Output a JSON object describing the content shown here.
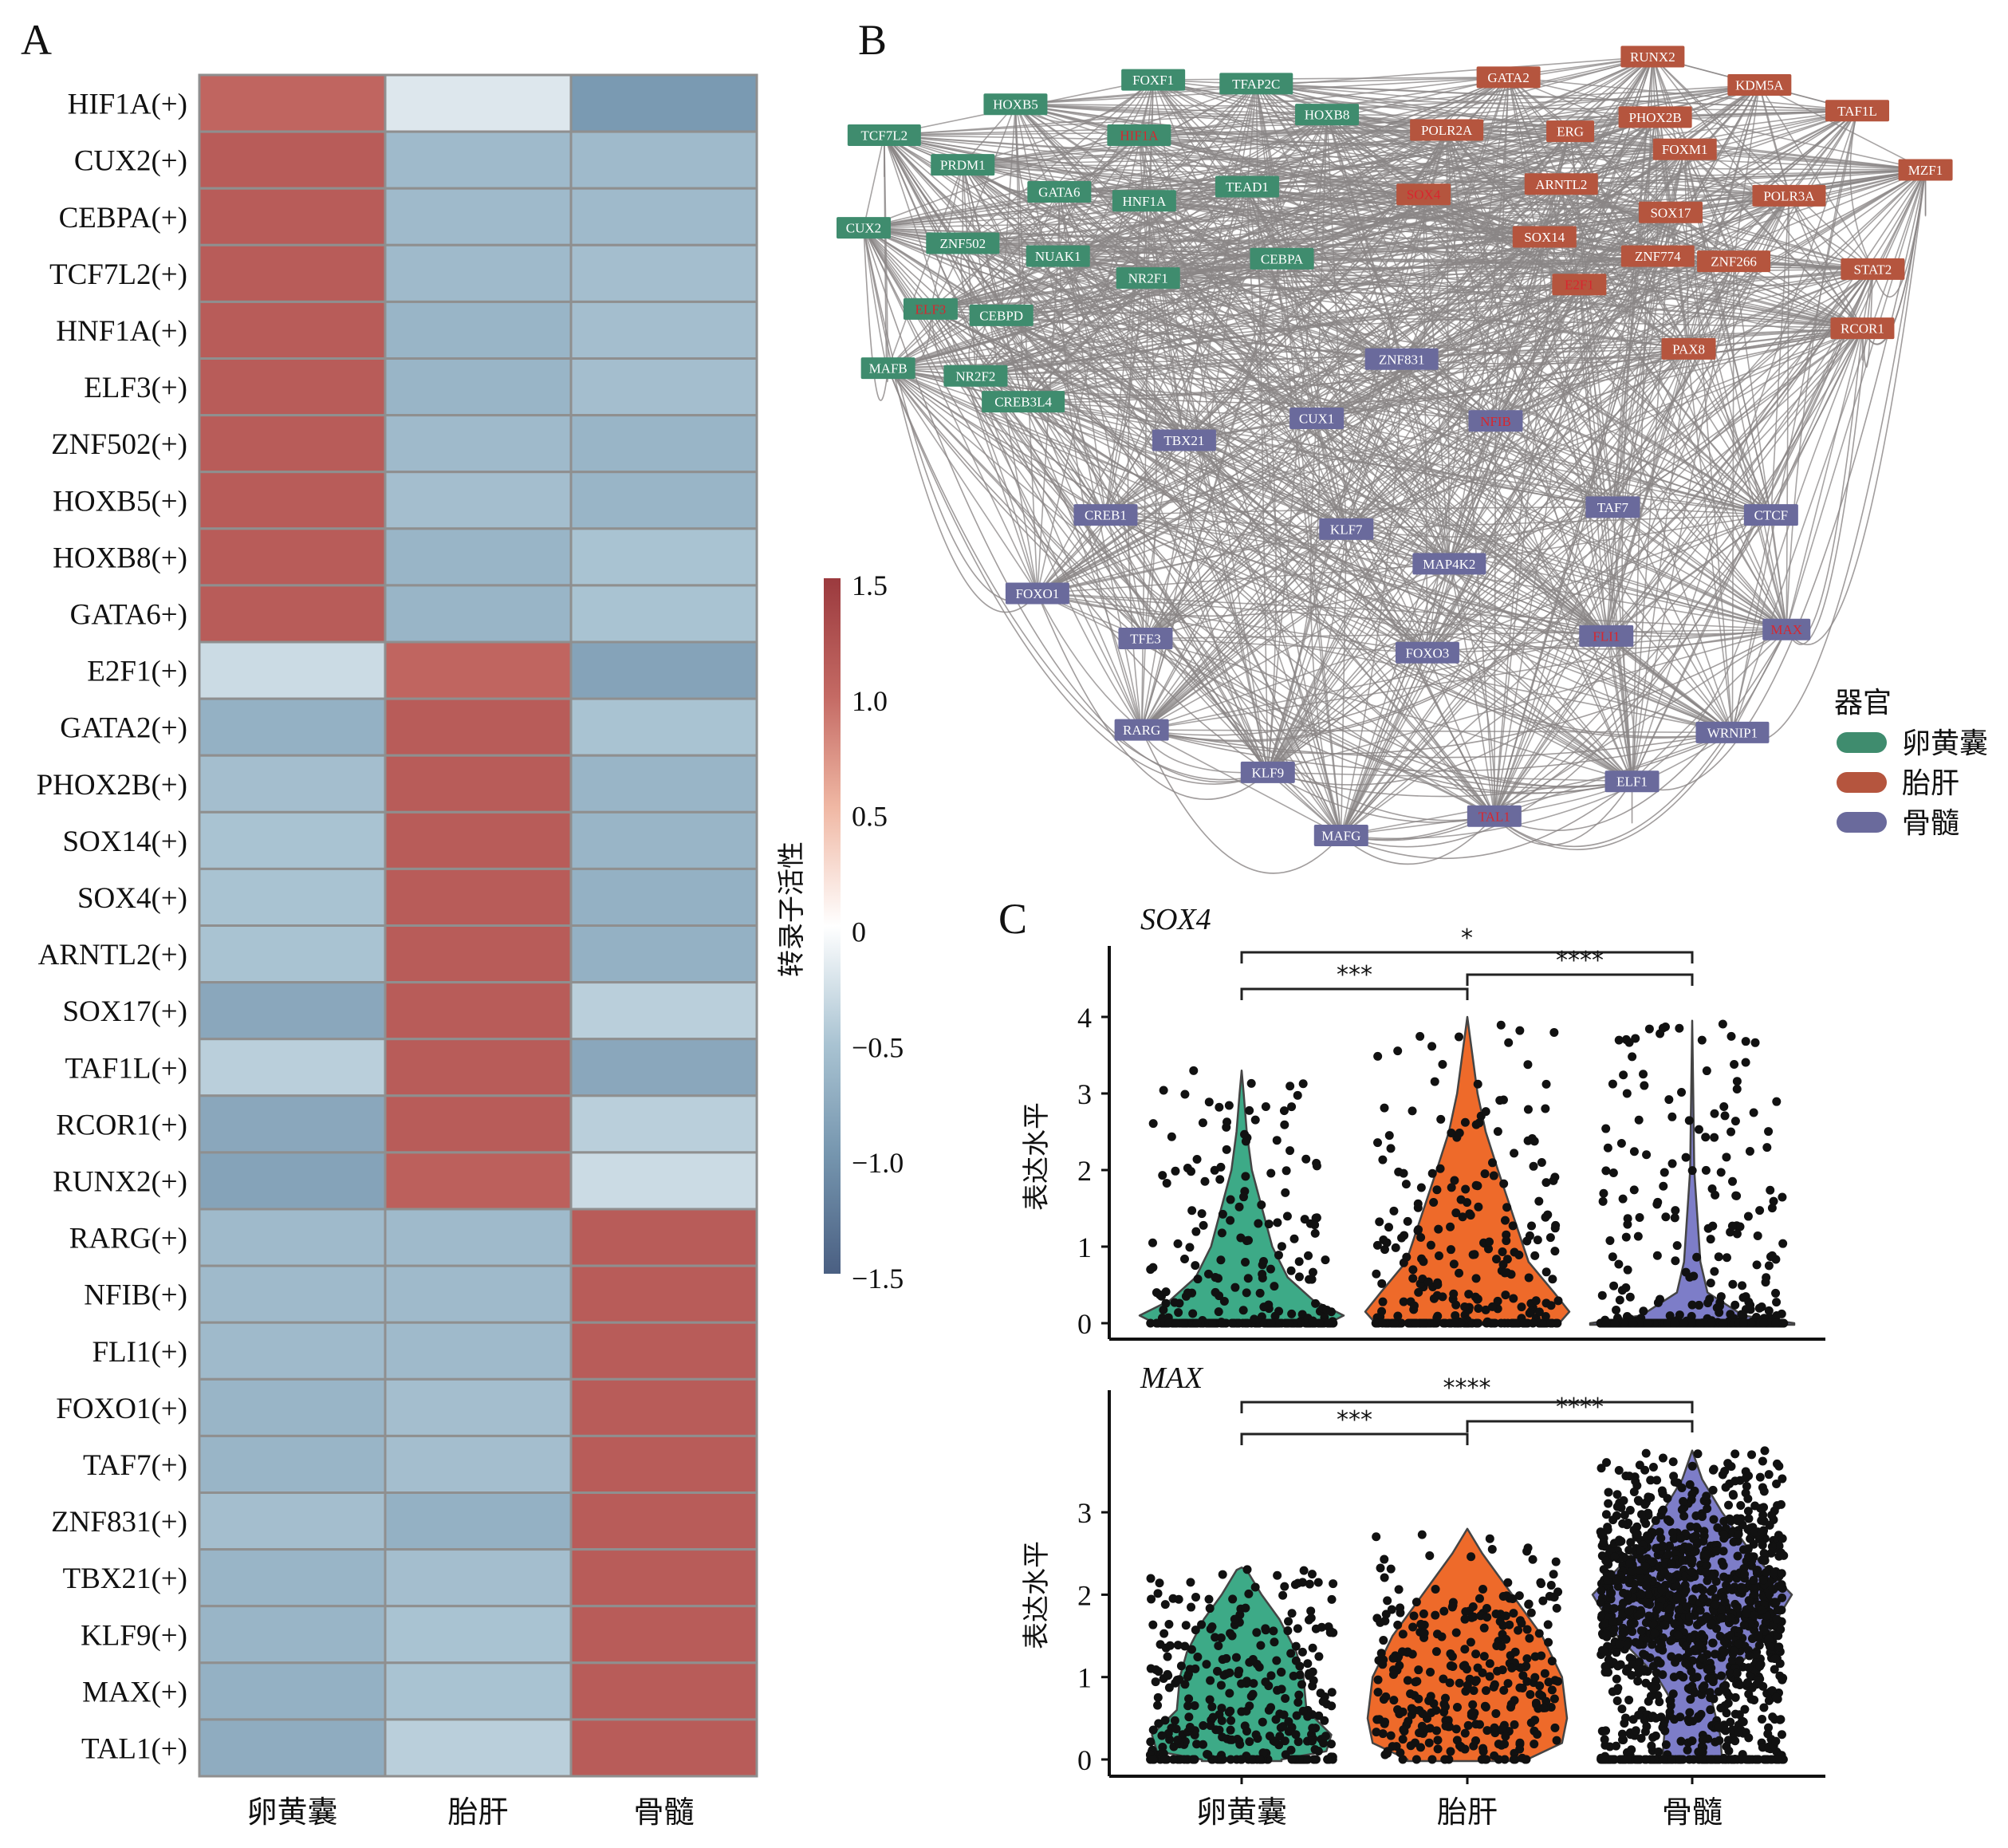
{
  "panels": {
    "a": "A",
    "b": "B",
    "c": "C"
  },
  "heatmap": {
    "columns": [
      "卵黄囊",
      "胎肝",
      "骨髓"
    ],
    "rows": [
      "HIF1A(+)",
      "CUX2(+)",
      "CEBPA(+)",
      "TCF7L2(+)",
      "HNF1A(+)",
      "ELF3(+)",
      "ZNF502(+)",
      "HOXB5(+)",
      "HOXB8(+)",
      "GATA6+)",
      "E2F1(+)",
      "GATA2(+)",
      "PHOX2B(+)",
      "SOX14(+)",
      "SOX4(+)",
      "ARNTL2(+)",
      "SOX17(+)",
      "TAF1L(+)",
      "RCOR1(+)",
      "RUNX2(+)",
      "RARG(+)",
      "NFIB(+)",
      "FLI1(+)",
      "FOXO1(+)",
      "TAF7(+)",
      "ZNF831(+)",
      "TBX21(+)",
      "KLF9(+)",
      "MAX(+)",
      "TAL1(+)"
    ],
    "colorbar": {
      "label": "转录子活性",
      "ticks": [
        "1.5",
        "1.0",
        "0.5",
        "0",
        "−0.5",
        "−1.0",
        "−1.5"
      ],
      "tick_values": [
        1.5,
        1.0,
        0.5,
        0,
        -0.5,
        -1.0,
        -1.5
      ],
      "range": [
        -1.5,
        1.5
      ],
      "colors": {
        "high": "#9b3a3e",
        "mid": "#ffffff",
        "low": "#4a5f82"
      }
    }
  },
  "chart_data": [
    {
      "type": "heatmap",
      "x_categories": [
        "卵黄囊",
        "胎肝",
        "骨髓"
      ],
      "y_categories": [
        "HIF1A(+)",
        "CUX2(+)",
        "CEBPA(+)",
        "TCF7L2(+)",
        "HNF1A(+)",
        "ELF3(+)",
        "ZNF502(+)",
        "HOXB5(+)",
        "HOXB8(+)",
        "GATA6+)",
        "E2F1(+)",
        "GATA2(+)",
        "PHOX2B(+)",
        "SOX14(+)",
        "SOX4(+)",
        "ARNTL2(+)",
        "SOX17(+)",
        "TAF1L(+)",
        "RCOR1(+)",
        "RUNX2(+)",
        "RARG(+)",
        "NFIB(+)",
        "FLI1(+)",
        "FOXO1(+)",
        "TAF7(+)",
        "ZNF831(+)",
        "TBX21(+)",
        "KLF9(+)",
        "MAX(+)",
        "TAL1(+)"
      ],
      "values": [
        [
          1.05,
          -0.2,
          -0.95
        ],
        [
          1.15,
          -0.6,
          -0.6
        ],
        [
          1.15,
          -0.6,
          -0.6
        ],
        [
          1.15,
          -0.6,
          -0.55
        ],
        [
          1.15,
          -0.65,
          -0.55
        ],
        [
          1.15,
          -0.65,
          -0.55
        ],
        [
          1.15,
          -0.6,
          -0.65
        ],
        [
          1.15,
          -0.55,
          -0.65
        ],
        [
          1.15,
          -0.65,
          -0.5
        ],
        [
          1.15,
          -0.65,
          -0.5
        ],
        [
          -0.3,
          1.05,
          -0.85
        ],
        [
          -0.7,
          1.15,
          -0.5
        ],
        [
          -0.55,
          1.15,
          -0.65
        ],
        [
          -0.5,
          1.15,
          -0.65
        ],
        [
          -0.5,
          1.15,
          -0.7
        ],
        [
          -0.5,
          1.15,
          -0.7
        ],
        [
          -0.8,
          1.15,
          -0.4
        ],
        [
          -0.4,
          1.15,
          -0.8
        ],
        [
          -0.8,
          1.15,
          -0.4
        ],
        [
          -0.85,
          1.1,
          -0.3
        ],
        [
          -0.6,
          -0.6,
          1.15
        ],
        [
          -0.6,
          -0.6,
          1.15
        ],
        [
          -0.6,
          -0.6,
          1.15
        ],
        [
          -0.65,
          -0.55,
          1.15
        ],
        [
          -0.65,
          -0.55,
          1.15
        ],
        [
          -0.55,
          -0.7,
          1.15
        ],
        [
          -0.65,
          -0.55,
          1.15
        ],
        [
          -0.65,
          -0.5,
          1.15
        ],
        [
          -0.7,
          -0.5,
          1.15
        ],
        [
          -0.75,
          -0.4,
          1.15
        ]
      ],
      "colorbar_label": "转录子活性",
      "colorbar_range": [
        -1.5,
        1.5
      ]
    },
    {
      "type": "violin",
      "title": "SOX4",
      "ylabel": "表达水平",
      "categories": [
        "卵黄囊",
        "胎肝",
        "骨髓"
      ],
      "yticks": [
        "0",
        "1",
        "2",
        "3",
        "4"
      ],
      "ylim": [
        -0.2,
        4.8
      ],
      "density_profiles": [
        [
          [
            0,
            0.85
          ],
          [
            0.1,
            1.0
          ],
          [
            0.3,
            0.7
          ],
          [
            0.6,
            0.45
          ],
          [
            1.0,
            0.3
          ],
          [
            1.5,
            0.2
          ],
          [
            2.0,
            0.1
          ],
          [
            2.5,
            0.05
          ],
          [
            3.0,
            0.02
          ],
          [
            3.3,
            0
          ]
        ],
        [
          [
            0,
            0.9
          ],
          [
            0.15,
            1.0
          ],
          [
            0.4,
            0.85
          ],
          [
            0.8,
            0.6
          ],
          [
            1.2,
            0.5
          ],
          [
            1.6,
            0.4
          ],
          [
            2.0,
            0.3
          ],
          [
            2.5,
            0.18
          ],
          [
            3.0,
            0.1
          ],
          [
            3.5,
            0.05
          ],
          [
            4.0,
            0
          ]
        ],
        [
          [
            0,
            1.0
          ],
          [
            0.1,
            0.5
          ],
          [
            0.4,
            0.15
          ],
          [
            0.8,
            0.08
          ],
          [
            1.2,
            0.06
          ],
          [
            1.6,
            0.04
          ],
          [
            2.0,
            0.02
          ],
          [
            3.0,
            0.01
          ],
          [
            3.95,
            0
          ]
        ]
      ],
      "comparisons": [
        {
          "groups": [
            "卵黄囊",
            "骨髓"
          ],
          "label": "*"
        },
        {
          "groups": [
            "卵黄囊",
            "胎肝"
          ],
          "label": "***"
        },
        {
          "groups": [
            "胎肝",
            "骨髓"
          ],
          "label": "****"
        }
      ]
    },
    {
      "type": "violin",
      "title": "MAX",
      "ylabel": "表达水平",
      "categories": [
        "卵黄囊",
        "胎肝",
        "骨髓"
      ],
      "yticks": [
        "0",
        "1",
        "2",
        "3"
      ],
      "ylim": [
        -0.2,
        4.5
      ],
      "density_profiles": [
        [
          [
            0,
            0.4
          ],
          [
            0.1,
            0.85
          ],
          [
            0.3,
            0.9
          ],
          [
            0.6,
            0.65
          ],
          [
            1.0,
            0.62
          ],
          [
            1.3,
            0.55
          ],
          [
            1.7,
            0.38
          ],
          [
            2.0,
            0.2
          ],
          [
            2.3,
            0.05
          ],
          [
            2.33,
            0
          ]
        ],
        [
          [
            0,
            0.6
          ],
          [
            0.2,
            0.95
          ],
          [
            0.5,
            1.0
          ],
          [
            1.0,
            0.95
          ],
          [
            1.5,
            0.75
          ],
          [
            2.0,
            0.45
          ],
          [
            2.5,
            0.15
          ],
          [
            2.8,
            0
          ]
        ],
        [
          [
            0,
            0.3
          ],
          [
            0.3,
            0.28
          ],
          [
            0.7,
            0.2
          ],
          [
            1.0,
            0.35
          ],
          [
            1.5,
            0.75
          ],
          [
            2.0,
            1.0
          ],
          [
            2.5,
            0.6
          ],
          [
            3.0,
            0.3
          ],
          [
            3.4,
            0.1
          ],
          [
            3.75,
            0
          ]
        ]
      ],
      "comparisons": [
        {
          "groups": [
            "卵黄囊",
            "骨髓"
          ],
          "label": "****"
        },
        {
          "groups": [
            "卵黄囊",
            "胎肝"
          ],
          "label": "***"
        },
        {
          "groups": [
            "胎肝",
            "骨髓"
          ],
          "label": "****"
        }
      ]
    }
  ],
  "network": {
    "legend_title": "器官",
    "groups": [
      {
        "label": "卵黄囊",
        "color": "#3f8c6e",
        "nodes": [
          "TCF7L2",
          "HOXB5",
          "FOXF1",
          "TFAP2C",
          "HOXB8",
          "HIF1A",
          "PRDM1",
          "GATA6",
          "HNF1A",
          "TEAD1",
          "CUX2",
          "ZNF502",
          "NUAK1",
          "NR2F1",
          "CEBPA",
          "ELF3",
          "CEBPD",
          "MAFB",
          "NR2F2",
          "CREB3L4"
        ]
      },
      {
        "label": "胎肝",
        "color": "#b5553e",
        "nodes": [
          "GATA2",
          "RUNX2",
          "KDM5A",
          "TAF1L",
          "POLR2A",
          "ERG",
          "PHOX2B",
          "FOXM1",
          "MZF1",
          "SOX4",
          "ARNTL2",
          "POLR3A",
          "SOX17",
          "SOX14",
          "ZNF774",
          "ZNF266",
          "E2F1",
          "STAT2",
          "RCOR1",
          "PAX8"
        ]
      },
      {
        "label": "骨髓",
        "color": "#6a6a9c",
        "nodes": [
          "ZNF831",
          "CUX1",
          "NFIB",
          "TBX21",
          "CREB1",
          "KLF7",
          "TAF7",
          "CTCF",
          "MAP4K2",
          "FOXO1",
          "TFE3",
          "FOXO3",
          "FLI1",
          "MAX",
          "RARG",
          "WRNIP1",
          "KLF9",
          "ELF1",
          "TAL1",
          "MAFG"
        ]
      }
    ],
    "highlighted_nodes": [
      "HIF1A",
      "ELF3",
      "SOX4",
      "E2F1",
      "NFIB",
      "FLI1",
      "MAX",
      "TAL1"
    ],
    "highlight_color": "#d8262e",
    "edge_color": "#8a8585"
  },
  "violin_colors": [
    "#3daa87",
    "#ee6a2a",
    "#7d7dc8"
  ]
}
